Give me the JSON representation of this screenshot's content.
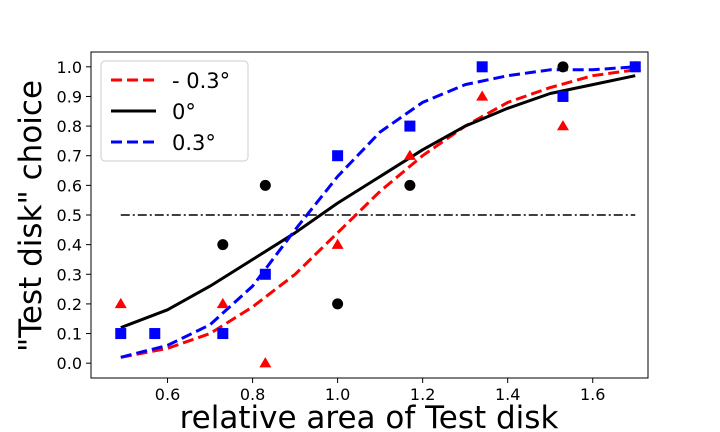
{
  "chart_data": {
    "type": "scatter",
    "xlabel": "relative area of Test disk",
    "ylabel": "\"Test disk\" choice",
    "xlim": [
      0.42,
      1.73
    ],
    "ylim": [
      -0.05,
      1.05
    ],
    "x_ticks": [
      0.6,
      0.8,
      1.0,
      1.2,
      1.4,
      1.6
    ],
    "x_tick_labels": [
      "0.6",
      "0.8",
      "1.0",
      "1.2",
      "1.4",
      "1.6"
    ],
    "y_ticks": [
      0.0,
      0.1,
      0.2,
      0.3,
      0.4,
      0.5,
      0.6,
      0.7,
      0.8,
      0.9,
      1.0
    ],
    "y_tick_labels": [
      "0.0",
      "0.1",
      "0.2",
      "0.3",
      "0.4",
      "0.5",
      "0.6",
      "0.7",
      "0.8",
      "0.9",
      "1.0"
    ],
    "grid": false,
    "legend_position": "upper-left",
    "reference_line": {
      "y": 0.5,
      "x_from": 0.49,
      "x_to": 1.7,
      "style": "dash-dot",
      "color": "#000000"
    },
    "series": [
      {
        "name": "- 0.3°",
        "color": "#ff0000",
        "line_style": "dashed",
        "marker": "triangle",
        "points": [
          {
            "x": 0.49,
            "y": 0.2
          },
          {
            "x": 0.73,
            "y": 0.2
          },
          {
            "x": 0.83,
            "y": 0.0
          },
          {
            "x": 1.0,
            "y": 0.4
          },
          {
            "x": 1.17,
            "y": 0.7
          },
          {
            "x": 1.34,
            "y": 0.9
          },
          {
            "x": 1.53,
            "y": 0.8
          },
          {
            "x": 1.7,
            "y": 1.0
          }
        ],
        "fit_curve": [
          {
            "x": 0.49,
            "y": 0.02
          },
          {
            "x": 0.6,
            "y": 0.05
          },
          {
            "x": 0.7,
            "y": 0.1
          },
          {
            "x": 0.8,
            "y": 0.19
          },
          {
            "x": 0.9,
            "y": 0.3
          },
          {
            "x": 1.0,
            "y": 0.44
          },
          {
            "x": 1.1,
            "y": 0.58
          },
          {
            "x": 1.2,
            "y": 0.7
          },
          {
            "x": 1.3,
            "y": 0.8
          },
          {
            "x": 1.4,
            "y": 0.88
          },
          {
            "x": 1.5,
            "y": 0.93
          },
          {
            "x": 1.6,
            "y": 0.97
          },
          {
            "x": 1.7,
            "y": 0.99
          }
        ]
      },
      {
        "name": "0°",
        "color": "#000000",
        "line_style": "solid",
        "marker": "circle",
        "points": [
          {
            "x": 0.73,
            "y": 0.4
          },
          {
            "x": 0.83,
            "y": 0.6
          },
          {
            "x": 1.0,
            "y": 0.2
          },
          {
            "x": 1.17,
            "y": 0.6
          },
          {
            "x": 1.53,
            "y": 1.0
          }
        ],
        "fit_curve": [
          {
            "x": 0.49,
            "y": 0.12
          },
          {
            "x": 0.6,
            "y": 0.18
          },
          {
            "x": 0.7,
            "y": 0.26
          },
          {
            "x": 0.8,
            "y": 0.35
          },
          {
            "x": 0.9,
            "y": 0.44
          },
          {
            "x": 1.0,
            "y": 0.54
          },
          {
            "x": 1.1,
            "y": 0.63
          },
          {
            "x": 1.2,
            "y": 0.72
          },
          {
            "x": 1.3,
            "y": 0.8
          },
          {
            "x": 1.4,
            "y": 0.86
          },
          {
            "x": 1.5,
            "y": 0.91
          },
          {
            "x": 1.6,
            "y": 0.94
          },
          {
            "x": 1.7,
            "y": 0.97
          }
        ]
      },
      {
        "name": "0.3°",
        "color": "#0000ff",
        "line_style": "dashed",
        "marker": "square",
        "points": [
          {
            "x": 0.49,
            "y": 0.1
          },
          {
            "x": 0.57,
            "y": 0.1
          },
          {
            "x": 0.73,
            "y": 0.1
          },
          {
            "x": 0.83,
            "y": 0.3
          },
          {
            "x": 1.0,
            "y": 0.7
          },
          {
            "x": 1.17,
            "y": 0.8
          },
          {
            "x": 1.34,
            "y": 1.0
          },
          {
            "x": 1.53,
            "y": 0.9
          },
          {
            "x": 1.7,
            "y": 1.0
          }
        ],
        "fit_curve": [
          {
            "x": 0.49,
            "y": 0.02
          },
          {
            "x": 0.6,
            "y": 0.06
          },
          {
            "x": 0.7,
            "y": 0.13
          },
          {
            "x": 0.8,
            "y": 0.26
          },
          {
            "x": 0.9,
            "y": 0.45
          },
          {
            "x": 1.0,
            "y": 0.63
          },
          {
            "x": 1.1,
            "y": 0.78
          },
          {
            "x": 1.2,
            "y": 0.88
          },
          {
            "x": 1.3,
            "y": 0.94
          },
          {
            "x": 1.4,
            "y": 0.97
          },
          {
            "x": 1.5,
            "y": 0.99
          },
          {
            "x": 1.6,
            "y": 0.99
          },
          {
            "x": 1.7,
            "y": 1.0
          }
        ]
      }
    ]
  }
}
